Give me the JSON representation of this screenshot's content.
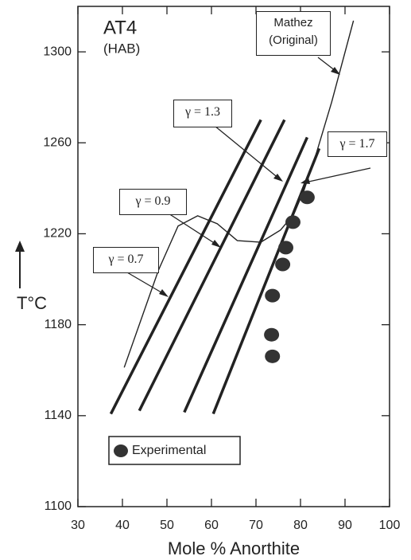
{
  "chart_data": {
    "type": "line",
    "title": "AT4",
    "subtitle": "(HAB)",
    "xlabel": "Mole % Anorthite",
    "ylabel": "T°C",
    "xlim": [
      30,
      100
    ],
    "ylim": [
      1100,
      1320
    ],
    "xticks": [
      30,
      40,
      50,
      60,
      70,
      80,
      90,
      100
    ],
    "yticks": [
      1100,
      1140,
      1180,
      1220,
      1260,
      1300
    ],
    "series": [
      {
        "name": "γ = 0.7",
        "kind": "line",
        "width": 3.5,
        "color": "#222",
        "x": [
          37.4,
          71.1
        ],
        "values": [
          1140.8,
          1270.1
        ]
      },
      {
        "name": "γ = 0.9",
        "kind": "line",
        "width": 3.5,
        "color": "#222",
        "x": [
          43.8,
          76.4
        ],
        "values": [
          1142.2,
          1270.1
        ]
      },
      {
        "name": "γ = 1.3",
        "kind": "line",
        "width": 3.5,
        "color": "#222",
        "x": [
          53.9,
          81.5
        ],
        "values": [
          1141.5,
          1262.4
        ]
      },
      {
        "name": "γ = 1.7",
        "kind": "line",
        "width": 3.5,
        "color": "#222",
        "x": [
          60.4,
          84.2
        ],
        "values": [
          1140.8,
          1257.5
        ]
      },
      {
        "name": "Mathez (Original)",
        "kind": "line",
        "width": 1.4,
        "color": "#222",
        "x": [
          40.4,
          48.1,
          52.5,
          56.9,
          61.3,
          65.8,
          71.1,
          75.5,
          78.5,
          80.8,
          83.5,
          87.0,
          91.9
        ],
        "values": [
          1161.2,
          1204.0,
          1223.4,
          1227.9,
          1224.4,
          1217.0,
          1216.3,
          1221.6,
          1228.6,
          1239.2,
          1255.0,
          1277.9,
          1313.7
        ]
      },
      {
        "name": "Experimental",
        "kind": "scatter",
        "color": "#333",
        "x": [
          81.5,
          78.3,
          76.7,
          76.0,
          73.7,
          73.5,
          73.7
        ],
        "values": [
          1236.0,
          1225.1,
          1213.9,
          1206.5,
          1192.8,
          1175.6,
          1166.1
        ]
      }
    ]
  }
}
